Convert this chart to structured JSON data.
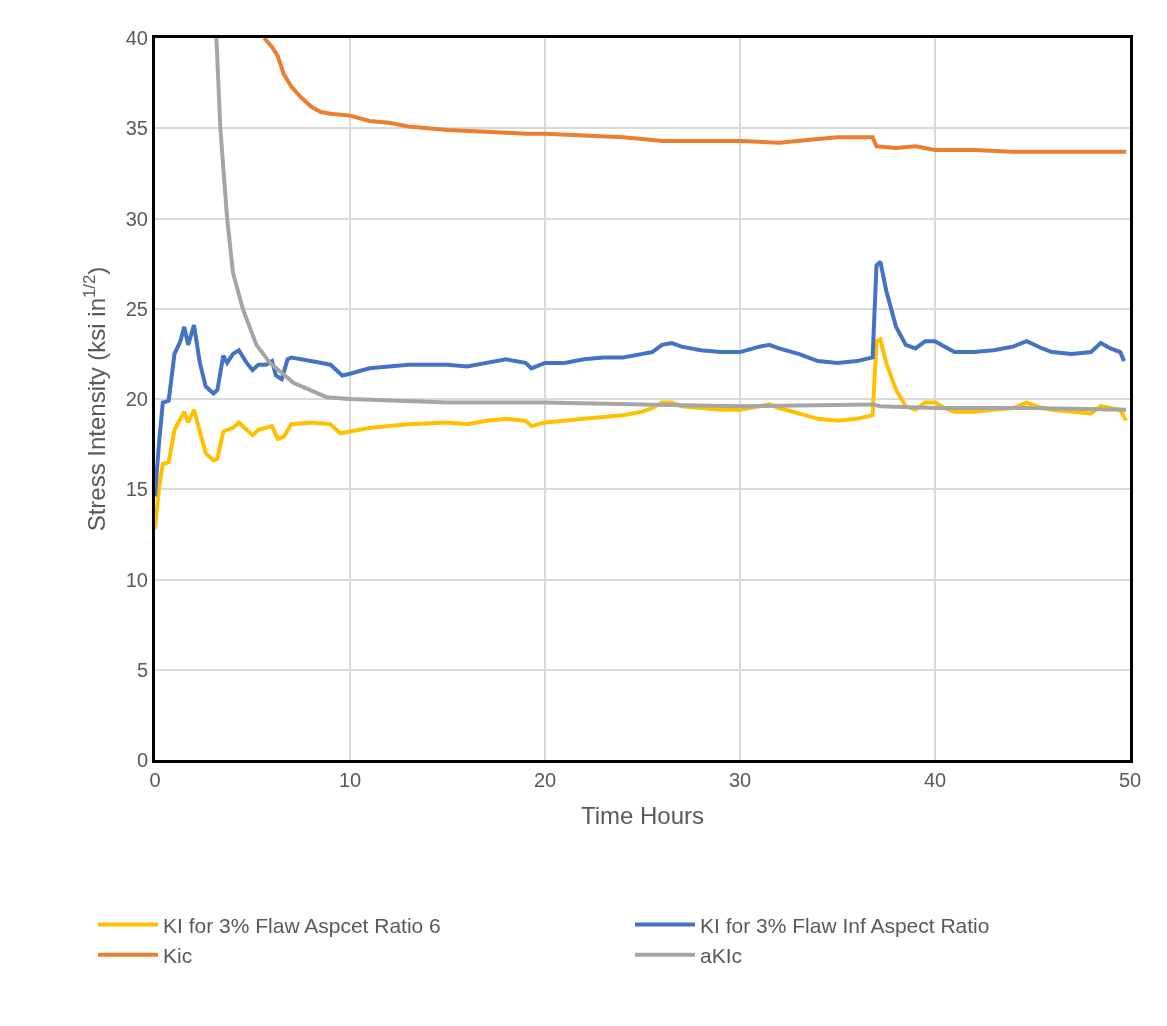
{
  "chart_data": {
    "type": "line",
    "xlabel": "Time Hours",
    "ylabel": "Stress Intensity (ksi in$^{1/2}$)",
    "xlim": [
      0,
      50
    ],
    "ylim": [
      0,
      40
    ],
    "xticks": [
      0,
      10,
      20,
      30,
      40,
      50
    ],
    "yticks": [
      0,
      5,
      10,
      15,
      20,
      25,
      30,
      35,
      40
    ],
    "grid": true,
    "legend": "bottom",
    "line_style": "solid",
    "marker": "none",
    "series": [
      {
        "name": "KI for 3% Flaw Aspcet Ratio 6",
        "color": "#ffc000",
        "x": [
          0,
          0.2,
          0.4,
          0.7,
          1.0,
          1.5,
          1.7,
          2.0,
          2.3,
          2.6,
          3.0,
          3.2,
          3.5,
          4.0,
          4.3,
          4.7,
          5.0,
          5.3,
          5.7,
          6.0,
          6.3,
          6.6,
          7.0,
          8,
          9,
          9.5,
          10,
          11,
          12,
          13,
          15,
          16,
          17,
          18,
          19,
          19.3,
          20,
          21,
          22,
          23,
          24,
          25,
          25.5,
          26,
          26.5,
          27,
          28,
          29,
          30,
          31,
          31.5,
          32,
          33,
          34,
          35,
          36,
          36.8,
          37,
          37.2,
          37.5,
          38,
          38.5,
          39,
          39.5,
          40,
          40.5,
          41,
          42,
          43,
          44,
          44.7,
          45.5,
          46,
          47,
          48,
          48.5,
          49,
          49.5,
          49.8
        ],
        "values": [
          12.8,
          15,
          16.4,
          16.5,
          18.3,
          19.3,
          18.7,
          19.4,
          18.2,
          17.0,
          16.6,
          16.7,
          18.2,
          18.4,
          18.7,
          18.3,
          18.0,
          18.3,
          18.4,
          18.5,
          17.8,
          17.9,
          18.6,
          18.7,
          18.6,
          18.1,
          18.2,
          18.4,
          18.5,
          18.6,
          18.7,
          18.6,
          18.8,
          18.9,
          18.8,
          18.5,
          18.7,
          18.8,
          18.9,
          19.0,
          19.1,
          19.3,
          19.5,
          19.8,
          19.8,
          19.6,
          19.5,
          19.4,
          19.4,
          19.6,
          19.7,
          19.5,
          19.2,
          18.9,
          18.8,
          18.9,
          19.1,
          23.2,
          23.3,
          22.0,
          20.5,
          19.6,
          19.4,
          19.8,
          19.8,
          19.5,
          19.3,
          19.3,
          19.4,
          19.5,
          19.8,
          19.5,
          19.4,
          19.3,
          19.2,
          19.6,
          19.5,
          19.4,
          18.8
        ]
      },
      {
        "name": "KI for 3% Flaw Inf Aspect Ratio",
        "color": "#4472c4",
        "x": [
          0,
          0.2,
          0.4,
          0.7,
          1.0,
          1.3,
          1.5,
          1.7,
          2.0,
          2.3,
          2.6,
          3.0,
          3.2,
          3.5,
          3.7,
          4.0,
          4.3,
          4.7,
          5.0,
          5.3,
          5.7,
          6.0,
          6.2,
          6.5,
          6.8,
          7.0,
          8,
          9,
          9.6,
          10,
          11,
          12,
          13,
          15,
          16,
          17,
          18,
          19,
          19.3,
          20,
          21,
          22,
          23,
          24,
          25,
          25.5,
          26,
          26.5,
          27,
          28,
          29,
          30,
          31,
          31.5,
          32,
          33,
          34,
          35,
          36,
          36.8,
          37.0,
          37.2,
          37.5,
          38,
          38.5,
          39,
          39.5,
          40,
          40.5,
          41,
          42,
          43,
          44,
          44.7,
          45.5,
          46,
          47,
          48,
          48.5,
          49,
          49.5,
          49.7
        ],
        "values": [
          14.6,
          17.5,
          19.8,
          19.9,
          22.5,
          23.2,
          24.0,
          23.0,
          24.1,
          22.0,
          20.7,
          20.3,
          20.5,
          22.4,
          22.0,
          22.5,
          22.7,
          22.0,
          21.6,
          21.9,
          21.9,
          22.1,
          21.3,
          21.1,
          22.2,
          22.3,
          22.1,
          21.9,
          21.3,
          21.4,
          21.7,
          21.8,
          21.9,
          21.9,
          21.8,
          22.0,
          22.2,
          22.0,
          21.7,
          22.0,
          22.0,
          22.2,
          22.3,
          22.3,
          22.5,
          22.6,
          23.0,
          23.1,
          22.9,
          22.7,
          22.6,
          22.6,
          22.9,
          23.0,
          22.8,
          22.5,
          22.1,
          22.0,
          22.1,
          22.3,
          27.4,
          27.6,
          26.0,
          24.0,
          23.0,
          22.8,
          23.2,
          23.2,
          22.9,
          22.6,
          22.6,
          22.7,
          22.9,
          23.2,
          22.8,
          22.6,
          22.5,
          22.6,
          23.1,
          22.8,
          22.6,
          22.1
        ]
      },
      {
        "name": "Kic",
        "color": "#ed7d31",
        "x": [
          5.6,
          6.0,
          6.3,
          6.6,
          7.0,
          7.5,
          8,
          8.5,
          9,
          10,
          11,
          12,
          13,
          15,
          17,
          19,
          20,
          22,
          24,
          25,
          26,
          28,
          30,
          32,
          34,
          35,
          36,
          36.8,
          37,
          38,
          39,
          40,
          42,
          44,
          46,
          48,
          49.8
        ],
        "values": [
          40,
          39.5,
          39.0,
          38.0,
          37.3,
          36.7,
          36.2,
          35.9,
          35.8,
          35.7,
          35.4,
          35.3,
          35.1,
          34.9,
          34.8,
          34.7,
          34.7,
          34.6,
          34.5,
          34.4,
          34.3,
          34.3,
          34.3,
          34.2,
          34.4,
          34.5,
          34.5,
          34.5,
          34.0,
          33.9,
          34.0,
          33.8,
          33.8,
          33.7,
          33.7,
          33.7,
          33.7
        ]
      },
      {
        "name": "aKIc",
        "color": "#a5a5a5",
        "x": [
          3.15,
          3.35,
          3.7,
          4.0,
          4.5,
          5.2,
          5.9,
          7.1,
          8.8,
          10,
          15,
          20,
          25,
          30,
          36.8,
          37.2,
          40,
          45,
          49.8
        ],
        "values": [
          40,
          35,
          30,
          27,
          25,
          23,
          22,
          20.9,
          20.1,
          20.0,
          19.8,
          19.8,
          19.7,
          19.6,
          19.7,
          19.6,
          19.5,
          19.5,
          19.4
        ]
      }
    ]
  }
}
